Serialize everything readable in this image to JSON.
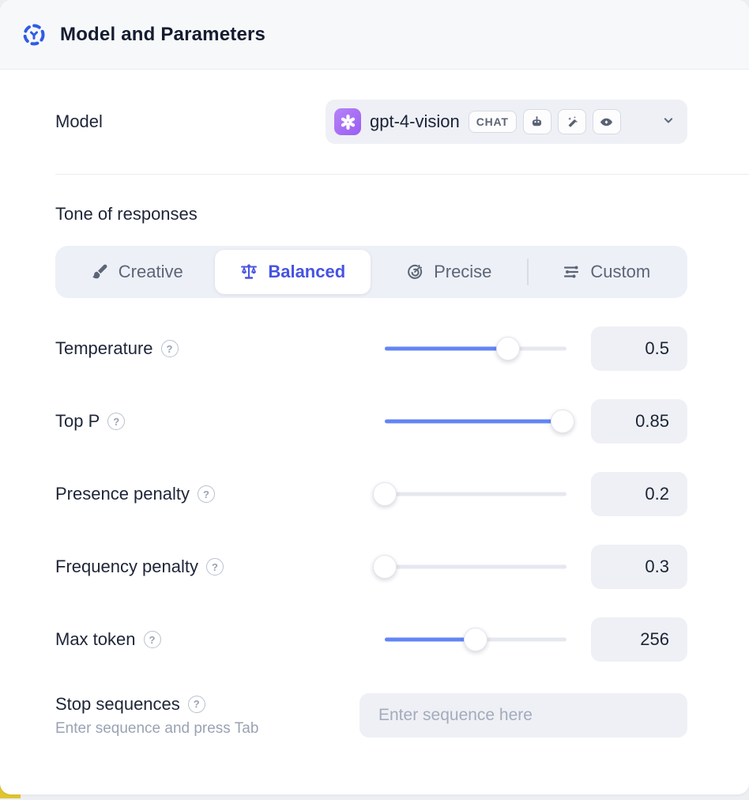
{
  "header": {
    "title": "Model and Parameters"
  },
  "model_row": {
    "label": "Model",
    "selected_model": "gpt-4-vision",
    "type_badge": "CHAT",
    "capability_icons": [
      "robot-icon",
      "magic-wand-icon",
      "vision-eye-icon"
    ],
    "provider_icon": "openai-logo"
  },
  "tone": {
    "heading": "Tone of responses",
    "options": [
      {
        "label": "Creative",
        "icon": "paintbrush-icon",
        "selected": false
      },
      {
        "label": "Balanced",
        "icon": "balance-scale-icon",
        "selected": true
      },
      {
        "label": "Precise",
        "icon": "target-icon",
        "selected": false
      },
      {
        "label": "Custom",
        "icon": "sliders-icon",
        "selected": false
      }
    ]
  },
  "parameters": [
    {
      "label": "Temperature",
      "value": "0.5",
      "slider_percent": 68
    },
    {
      "label": "Top P",
      "value": "0.85",
      "slider_percent": 98
    },
    {
      "label": "Presence penalty",
      "value": "0.2",
      "slider_percent": 0
    },
    {
      "label": "Frequency penalty",
      "value": "0.3",
      "slider_percent": 0
    },
    {
      "label": "Max token",
      "value": "256",
      "slider_percent": 50
    }
  ],
  "stop_sequences": {
    "label": "Stop sequences",
    "hint": "Enter sequence and press Tab",
    "placeholder": "Enter sequence here"
  },
  "colors": {
    "accent_blue": "#2f5ce6",
    "selected_indigo": "#4653e3",
    "slider_fill": "#6285f4",
    "openai_purple": "#9a5ef2",
    "corner_accent_yellow": "#dfc531"
  }
}
